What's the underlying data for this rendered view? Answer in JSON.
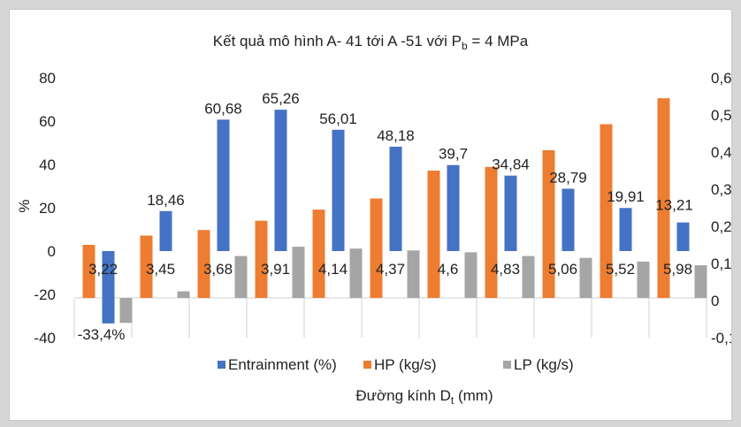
{
  "chart_data": {
    "type": "bar",
    "title_main": "Kết quả mô hình A- 41 tới A -51 với P",
    "title_sub": "b",
    "title_tail": " = 4 MPa",
    "xlabel_main": "Đường kính D",
    "xlabel_sub": "t",
    "xlabel_tail": " (mm)",
    "ylabel": "%",
    "ylim": [
      -40,
      80
    ],
    "yticks": [
      "80",
      "60",
      "40",
      "20",
      "0",
      "-20",
      "-40"
    ],
    "ylim_right": [
      -0.1,
      0.6
    ],
    "yticks_right": [
      "0,6",
      "0,5",
      "0,4",
      "0,3",
      "0,2",
      "0,1",
      "0",
      "-0,1"
    ],
    "categories": [
      "3,22",
      "3,45",
      "3,68",
      "3,91",
      "4,14",
      "4,37",
      "4,6",
      "4,83",
      "5,06",
      "5,52",
      "5,98"
    ],
    "series": [
      {
        "name": "Entrainment (%)",
        "axis": "left",
        "color": "#4472c4",
        "values": [
          -33.4,
          18.46,
          60.68,
          65.26,
          56.01,
          48.18,
          39.7,
          34.84,
          28.79,
          19.91,
          13.21
        ],
        "labels": [
          "-33,4%",
          "18,46",
          "60,68",
          "65,26",
          "56,01",
          "48,18",
          "39,7",
          "34,84",
          "28,79",
          "19,91",
          "13,21"
        ]
      },
      {
        "name": "HP (kg/s)",
        "axis": "right",
        "color": "#ed7d31",
        "values": [
          0.15,
          0.175,
          0.19,
          0.215,
          0.245,
          0.275,
          0.35,
          0.36,
          0.405,
          0.475,
          0.545
        ]
      },
      {
        "name": "LP (kg/s)",
        "axis": "right",
        "color": "#a5a5a5",
        "values": [
          -0.06,
          0.025,
          0.12,
          0.145,
          0.14,
          0.135,
          0.13,
          0.12,
          0.115,
          0.105,
          0.095
        ]
      }
    ],
    "grid": false,
    "legend_position": "bottom"
  }
}
